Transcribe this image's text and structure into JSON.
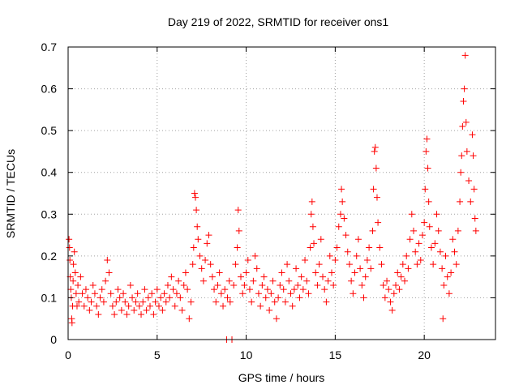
{
  "chart_data": {
    "type": "scatter",
    "title": "Day 219 of 2022, SRMTID for receiver ons1",
    "xlabel": "GPS time / hours",
    "ylabel": "SRMTID / TECUs",
    "xlim": [
      0,
      24
    ],
    "ylim": [
      0,
      0.7
    ],
    "xticks": [
      0,
      5,
      10,
      15,
      20
    ],
    "yticks": [
      0,
      0.1,
      0.2,
      0.3,
      0.4,
      0.5,
      0.6,
      0.7
    ],
    "xtick_labels": [
      "0",
      "5",
      "10",
      "15",
      "20"
    ],
    "ytick_labels": [
      "0",
      "0.1",
      "0.2",
      "0.3",
      "0.4",
      "0.5",
      "0.6",
      "0.7"
    ],
    "grid": true,
    "marker": "+",
    "color": "#ff0000",
    "note": "points estimated from plot; dense series sampled approximately",
    "series": [
      {
        "name": "ons1",
        "points": [
          [
            0.05,
            0.24
          ],
          [
            0.08,
            0.22
          ],
          [
            0.1,
            0.19
          ],
          [
            0.12,
            0.15
          ],
          [
            0.15,
            0.12
          ],
          [
            0.18,
            0.1
          ],
          [
            0.2,
            0.05
          ],
          [
            0.22,
            0.04
          ],
          [
            0.25,
            0.08
          ],
          [
            0.28,
            0.14
          ],
          [
            0.3,
            0.18
          ],
          [
            0.35,
            0.21
          ],
          [
            0.4,
            0.16
          ],
          [
            0.45,
            0.11
          ],
          [
            0.5,
            0.08
          ],
          [
            0.55,
            0.13
          ],
          [
            0.6,
            0.09
          ],
          [
            0.7,
            0.15
          ],
          [
            0.8,
            0.11
          ],
          [
            0.9,
            0.08
          ],
          [
            1.0,
            0.12
          ],
          [
            1.1,
            0.1
          ],
          [
            1.2,
            0.07
          ],
          [
            1.3,
            0.09
          ],
          [
            1.4,
            0.13
          ],
          [
            1.5,
            0.11
          ],
          [
            1.6,
            0.08
          ],
          [
            1.7,
            0.06
          ],
          [
            1.8,
            0.1
          ],
          [
            1.9,
            0.12
          ],
          [
            2.0,
            0.09
          ],
          [
            2.1,
            0.14
          ],
          [
            2.2,
            0.19
          ],
          [
            2.3,
            0.16
          ],
          [
            2.4,
            0.11
          ],
          [
            2.5,
            0.08
          ],
          [
            2.6,
            0.06
          ],
          [
            2.7,
            0.09
          ],
          [
            2.8,
            0.12
          ],
          [
            2.9,
            0.1
          ],
          [
            3.0,
            0.07
          ],
          [
            3.1,
            0.11
          ],
          [
            3.2,
            0.09
          ],
          [
            3.3,
            0.06
          ],
          [
            3.4,
            0.08
          ],
          [
            3.5,
            0.13
          ],
          [
            3.6,
            0.1
          ],
          [
            3.7,
            0.07
          ],
          [
            3.8,
            0.09
          ],
          [
            3.9,
            0.11
          ],
          [
            4.0,
            0.08
          ],
          [
            4.1,
            0.06
          ],
          [
            4.2,
            0.09
          ],
          [
            4.3,
            0.12
          ],
          [
            4.4,
            0.07
          ],
          [
            4.5,
            0.1
          ],
          [
            4.6,
            0.08
          ],
          [
            4.7,
            0.11
          ],
          [
            4.8,
            0.06
          ],
          [
            4.9,
            0.09
          ],
          [
            5.0,
            0.12
          ],
          [
            5.1,
            0.08
          ],
          [
            5.2,
            0.1
          ],
          [
            5.3,
            0.07
          ],
          [
            5.4,
            0.11
          ],
          [
            5.5,
            0.09
          ],
          [
            5.6,
            0.13
          ],
          [
            5.7,
            0.1
          ],
          [
            5.8,
            0.15
          ],
          [
            5.9,
            0.12
          ],
          [
            6.0,
            0.08
          ],
          [
            6.1,
            0.11
          ],
          [
            6.2,
            0.14
          ],
          [
            6.3,
            0.1
          ],
          [
            6.4,
            0.07
          ],
          [
            6.5,
            0.13
          ],
          [
            6.6,
            0.16
          ],
          [
            6.7,
            0.12
          ],
          [
            6.8,
            0.05
          ],
          [
            6.9,
            0.09
          ],
          [
            7.0,
            0.18
          ],
          [
            7.05,
            0.22
          ],
          [
            7.1,
            0.35
          ],
          [
            7.15,
            0.34
          ],
          [
            7.2,
            0.31
          ],
          [
            7.25,
            0.27
          ],
          [
            7.3,
            0.24
          ],
          [
            7.4,
            0.2
          ],
          [
            7.5,
            0.17
          ],
          [
            7.6,
            0.14
          ],
          [
            7.7,
            0.19
          ],
          [
            7.8,
            0.23
          ],
          [
            7.9,
            0.25
          ],
          [
            8.0,
            0.18
          ],
          [
            8.1,
            0.15
          ],
          [
            8.2,
            0.12
          ],
          [
            8.3,
            0.09
          ],
          [
            8.4,
            0.13
          ],
          [
            8.5,
            0.16
          ],
          [
            8.6,
            0.11
          ],
          [
            8.7,
            0.08
          ],
          [
            8.8,
            0.12
          ],
          [
            8.9,
            0.0
          ],
          [
            8.95,
            0.1
          ],
          [
            9.05,
            0.14
          ],
          [
            9.1,
            0.09
          ],
          [
            9.2,
            0.0
          ],
          [
            9.3,
            0.13
          ],
          [
            9.4,
            0.18
          ],
          [
            9.5,
            0.22
          ],
          [
            9.55,
            0.31
          ],
          [
            9.6,
            0.26
          ],
          [
            9.7,
            0.15
          ],
          [
            9.8,
            0.11
          ],
          [
            9.9,
            0.13
          ],
          [
            10.0,
            0.16
          ],
          [
            10.1,
            0.19
          ],
          [
            10.2,
            0.12
          ],
          [
            10.3,
            0.09
          ],
          [
            10.4,
            0.14
          ],
          [
            10.5,
            0.2
          ],
          [
            10.6,
            0.17
          ],
          [
            10.7,
            0.11
          ],
          [
            10.8,
            0.08
          ],
          [
            10.9,
            0.13
          ],
          [
            11.0,
            0.15
          ],
          [
            11.1,
            0.1
          ],
          [
            11.2,
            0.12
          ],
          [
            11.3,
            0.07
          ],
          [
            11.4,
            0.11
          ],
          [
            11.5,
            0.14
          ],
          [
            11.6,
            0.09
          ],
          [
            11.7,
            0.05
          ],
          [
            11.8,
            0.1
          ],
          [
            11.9,
            0.13
          ],
          [
            12.0,
            0.16
          ],
          [
            12.1,
            0.12
          ],
          [
            12.2,
            0.09
          ],
          [
            12.3,
            0.18
          ],
          [
            12.4,
            0.14
          ],
          [
            12.5,
            0.11
          ],
          [
            12.6,
            0.08
          ],
          [
            12.7,
            0.12
          ],
          [
            12.8,
            0.17
          ],
          [
            12.9,
            0.13
          ],
          [
            13.0,
            0.1
          ],
          [
            13.1,
            0.15
          ],
          [
            13.2,
            0.12
          ],
          [
            13.3,
            0.19
          ],
          [
            13.4,
            0.14
          ],
          [
            13.5,
            0.11
          ],
          [
            13.6,
            0.22
          ],
          [
            13.65,
            0.3
          ],
          [
            13.7,
            0.33
          ],
          [
            13.75,
            0.27
          ],
          [
            13.8,
            0.23
          ],
          [
            13.9,
            0.16
          ],
          [
            14.0,
            0.13
          ],
          [
            14.1,
            0.18
          ],
          [
            14.2,
            0.24
          ],
          [
            14.3,
            0.15
          ],
          [
            14.4,
            0.12
          ],
          [
            14.5,
            0.09
          ],
          [
            14.6,
            0.14
          ],
          [
            14.7,
            0.2
          ],
          [
            14.8,
            0.16
          ],
          [
            14.9,
            0.13
          ],
          [
            15.0,
            0.19
          ],
          [
            15.1,
            0.22
          ],
          [
            15.2,
            0.27
          ],
          [
            15.3,
            0.3
          ],
          [
            15.35,
            0.36
          ],
          [
            15.4,
            0.33
          ],
          [
            15.5,
            0.29
          ],
          [
            15.6,
            0.25
          ],
          [
            15.7,
            0.21
          ],
          [
            15.8,
            0.18
          ],
          [
            15.9,
            0.14
          ],
          [
            16.0,
            0.11
          ],
          [
            16.1,
            0.16
          ],
          [
            16.2,
            0.2
          ],
          [
            16.3,
            0.24
          ],
          [
            16.4,
            0.17
          ],
          [
            16.5,
            0.13
          ],
          [
            16.6,
            0.1
          ],
          [
            16.7,
            0.15
          ],
          [
            16.8,
            0.19
          ],
          [
            16.9,
            0.22
          ],
          [
            17.0,
            0.17
          ],
          [
            17.1,
            0.26
          ],
          [
            17.15,
            0.36
          ],
          [
            17.2,
            0.45
          ],
          [
            17.25,
            0.46
          ],
          [
            17.3,
            0.41
          ],
          [
            17.35,
            0.34
          ],
          [
            17.4,
            0.28
          ],
          [
            17.5,
            0.22
          ],
          [
            17.6,
            0.18
          ],
          [
            17.7,
            0.13
          ],
          [
            17.8,
            0.1
          ],
          [
            17.9,
            0.14
          ],
          [
            18.0,
            0.12
          ],
          [
            18.1,
            0.09
          ],
          [
            18.2,
            0.07
          ],
          [
            18.3,
            0.11
          ],
          [
            18.4,
            0.13
          ],
          [
            18.5,
            0.16
          ],
          [
            18.6,
            0.12
          ],
          [
            18.7,
            0.15
          ],
          [
            18.8,
            0.18
          ],
          [
            18.9,
            0.14
          ],
          [
            19.0,
            0.2
          ],
          [
            19.1,
            0.17
          ],
          [
            19.2,
            0.24
          ],
          [
            19.3,
            0.3
          ],
          [
            19.4,
            0.26
          ],
          [
            19.5,
            0.21
          ],
          [
            19.6,
            0.18
          ],
          [
            19.7,
            0.23
          ],
          [
            19.8,
            0.19
          ],
          [
            19.9,
            0.25
          ],
          [
            20.0,
            0.28
          ],
          [
            20.05,
            0.36
          ],
          [
            20.1,
            0.45
          ],
          [
            20.15,
            0.48
          ],
          [
            20.2,
            0.41
          ],
          [
            20.25,
            0.33
          ],
          [
            20.3,
            0.27
          ],
          [
            20.4,
            0.22
          ],
          [
            20.5,
            0.18
          ],
          [
            20.6,
            0.23
          ],
          [
            20.7,
            0.3
          ],
          [
            20.8,
            0.26
          ],
          [
            20.9,
            0.21
          ],
          [
            21.0,
            0.17
          ],
          [
            21.05,
            0.05
          ],
          [
            21.1,
            0.13
          ],
          [
            21.2,
            0.2
          ],
          [
            21.3,
            0.15
          ],
          [
            21.4,
            0.11
          ],
          [
            21.5,
            0.16
          ],
          [
            21.6,
            0.24
          ],
          [
            21.7,
            0.21
          ],
          [
            21.8,
            0.18
          ],
          [
            21.9,
            0.26
          ],
          [
            22.0,
            0.33
          ],
          [
            22.05,
            0.4
          ],
          [
            22.1,
            0.44
          ],
          [
            22.15,
            0.51
          ],
          [
            22.2,
            0.57
          ],
          [
            22.25,
            0.6
          ],
          [
            22.3,
            0.68
          ],
          [
            22.35,
            0.52
          ],
          [
            22.4,
            0.45
          ],
          [
            22.5,
            0.38
          ],
          [
            22.6,
            0.33
          ],
          [
            22.7,
            0.49
          ],
          [
            22.75,
            0.44
          ],
          [
            22.8,
            0.36
          ],
          [
            22.85,
            0.29
          ],
          [
            22.9,
            0.26
          ]
        ]
      }
    ]
  }
}
